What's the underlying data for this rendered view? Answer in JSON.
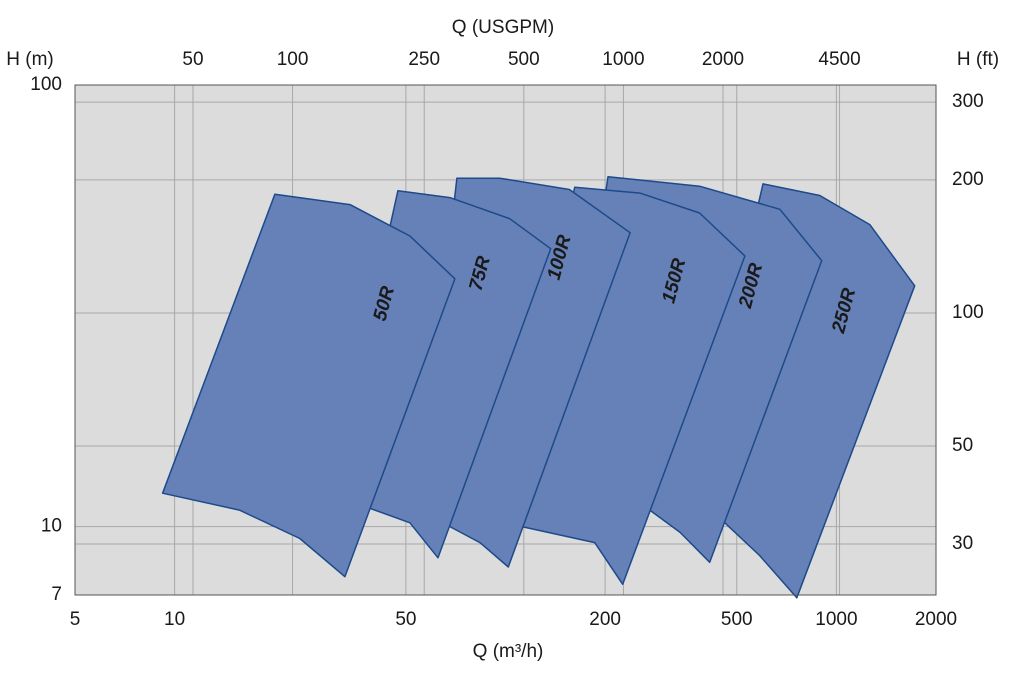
{
  "chart_data": {
    "type": "area-region",
    "xlabel": "Q (m³/h)",
    "ylabel": "H (m)",
    "x2label": "Q (USGPM)",
    "y2label": "H (ft)",
    "log_x": true,
    "log_y": true,
    "grid": true,
    "xlim": [
      5,
      2000
    ],
    "xticks": [
      5,
      10,
      50,
      200,
      500,
      1000,
      2000
    ],
    "ylim": [
      7,
      100
    ],
    "yticks": [
      7,
      10,
      100
    ],
    "x2lim": [
      22,
      8806
    ],
    "x2ticks": [
      50,
      100,
      250,
      500,
      1000,
      2000,
      4500
    ],
    "y2lim": [
      23,
      328
    ],
    "y2ticks": [
      30,
      50,
      100,
      200,
      300
    ],
    "fill_color": "#6680b8",
    "edge_color": "#1d4a8a",
    "series": [
      {
        "name": "50R",
        "x": [
          20.1,
          33.9,
          51.4,
          70.3,
          32.7,
          23.9,
          15.7,
          9.2
        ],
        "y": [
          56.6,
          53.6,
          45.5,
          36.4,
          7.7,
          9.4,
          10.9,
          11.9
        ]
      },
      {
        "name": "75R",
        "x": [
          47.3,
          67.9,
          103,
          137,
          62.5,
          51.4,
          38.9,
          29.4
        ],
        "y": [
          57.6,
          55.6,
          49.8,
          42.6,
          8.5,
          10.2,
          11.0,
          11.6
        ]
      },
      {
        "name": "100R",
        "x": [
          71.3,
          96.1,
          156,
          238,
          102,
          83.7,
          67.9,
          55.1
        ],
        "y": [
          61.5,
          61.5,
          58.0,
          46.3,
          8.1,
          9.2,
          10.0,
          11.6
        ]
      },
      {
        "name": "150R",
        "x": [
          162,
          255,
          386,
          529,
          226,
          186,
          112,
          96.1
        ],
        "y": [
          58.7,
          56.9,
          51.3,
          41.0,
          7.4,
          9.2,
          10.0,
          11.6
        ]
      },
      {
        "name": "200R",
        "x": [
          204,
          386,
          675,
          903,
          414,
          337,
          273,
          146
        ],
        "y": [
          62.0,
          59.0,
          52.3,
          40.0,
          8.3,
          9.7,
          10.9,
          11.6
        ]
      },
      {
        "name": "250R",
        "x": [
          600,
          891,
          1262,
          1725,
          759,
          586,
          460,
          361
        ],
        "y": [
          59.7,
          56.2,
          48.3,
          35.1,
          6.9,
          8.6,
          10.2,
          11.6
        ]
      }
    ]
  }
}
